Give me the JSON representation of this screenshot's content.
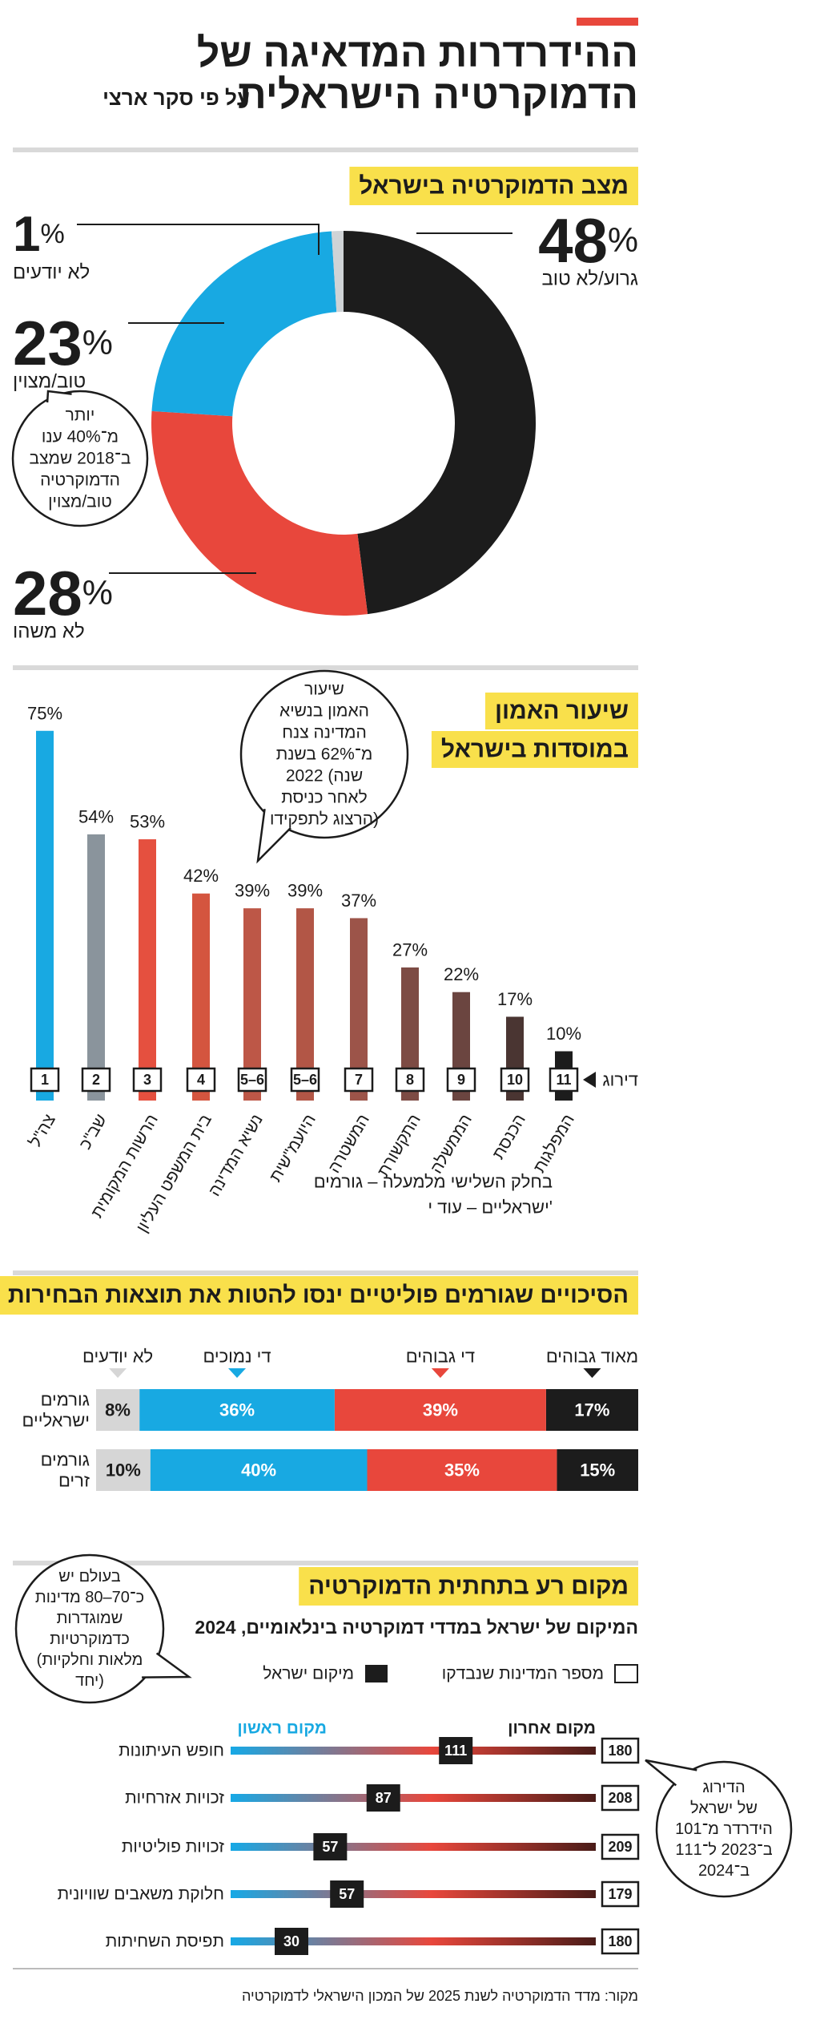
{
  "header": {
    "title_lines": [
      "ההידרדרות המדאיגה של",
      "הדמוקרטיה הישראלית"
    ],
    "subtitle": "על פי סקר ארצי"
  },
  "chart_data": [
    {
      "type": "donut",
      "title": "מצב הדמוקרטיה בישראל",
      "categories": [
        "גרוע/לא טוב",
        "לא משהו",
        "טוב/מצוין",
        "לא יודעים"
      ],
      "values": [
        48,
        28,
        23,
        1
      ],
      "value_labels": [
        "48%",
        "28%",
        "23%",
        "1%"
      ],
      "colors": [
        "#1c1c1c",
        "#e8473c",
        "#18a9e2",
        "#cfd3d6"
      ],
      "annotation": [
        "יותר",
        "מ־40% ענו",
        "ב־2018 שמצב",
        "הדמוקרטיה",
        "טוב/מצוין"
      ]
    },
    {
      "type": "bar",
      "title": [
        "שיעור האמון",
        "במוסדות בישראל"
      ],
      "categories": [
        "צה\"ל",
        "שב\"כ",
        "הרשות המקומית",
        "בית המשפט העליון",
        "נשיא המדינה",
        "היועמ\"שית",
        "המשטרה",
        "התקשורת",
        "הממשלה",
        "הכנסת",
        "המפלגות"
      ],
      "values": [
        75,
        54,
        53,
        42,
        39,
        39,
        37,
        27,
        22,
        17,
        10
      ],
      "value_labels": [
        "75%",
        "54%",
        "53%",
        "42%",
        "39%",
        "39%",
        "37%",
        "27%",
        "22%",
        "17%",
        "10%"
      ],
      "ranks": [
        1,
        2,
        3,
        4,
        "5–6",
        "5–6",
        7,
        8,
        9,
        10,
        11
      ],
      "rank_label": "דירוג",
      "colors": [
        "#18a9e2",
        "#8a949c",
        "#e5503f",
        "#d4553f",
        "#bd5747",
        "#b25646",
        "#9c5449",
        "#7d4b44",
        "#6b4540",
        "#4a3532",
        "#1c1c1c"
      ],
      "annotation": [
        "שיעור",
        "האמון בנשיא",
        "המדינה צנח",
        "מ־62% בשנת",
        "2022 (שנה",
        "לאחר כניסת",
        "הרצוג לתפקידו)"
      ],
      "note": [
        "בחלק השלישי מלמעלה – גורמים",
        "ישראליים – עוד י'"
      ]
    },
    {
      "type": "stacked-bar",
      "title": "הסיכויים שגורמים פוליטיים ינסו להטות את תוצאות הבחירות",
      "categories": [
        [
          "גורמים",
          "ישראליים"
        ],
        [
          "גורמים",
          "זרים"
        ]
      ],
      "series": [
        {
          "name": "מאוד גבוהים",
          "color": "#1c1c1c",
          "values": [
            17,
            15
          ],
          "value_labels": [
            "17%",
            "15%"
          ]
        },
        {
          "name": "די גבוהים",
          "color": "#e8473c",
          "values": [
            39,
            35
          ],
          "value_labels": [
            "39%",
            "35%"
          ]
        },
        {
          "name": "די נמוכים",
          "color": "#18a9e2",
          "values": [
            36,
            40
          ],
          "value_labels": [
            "36%",
            "40%"
          ]
        },
        {
          "name": "לא יודעים",
          "color": "#d6d6d6",
          "values": [
            8,
            10
          ],
          "value_labels": [
            "8%",
            "10%"
          ]
        }
      ]
    },
    {
      "type": "rank",
      "title": "מקום רע בתחתית הדמוקרטיה",
      "subtitle": "המיקום של ישראל במדדי דמוקרטיה בינלאומיים, 2024",
      "legend": {
        "total": "מספר המדינות שנבדקו",
        "rank": "מיקום ישראל"
      },
      "axis_labels": {
        "last": "מקום אחרון",
        "first": "מקום ראשון"
      },
      "categories": [
        "חופש העיתונות",
        "זכויות אזרחיות",
        "זכויות פוליטיות",
        "חלוקת משאבים שוויונית",
        "תפיסת השחיתות"
      ],
      "ranks": [
        111,
        87,
        57,
        57,
        30
      ],
      "totals": [
        180,
        208,
        209,
        179,
        180
      ],
      "annotation_left": [
        "בעולם יש",
        "כ־70–80 מדינות",
        "שמוגדרות",
        "כדמוקרטיות",
        "(מלאות וחלקיות",
        "יחד)"
      ],
      "annotation_right": [
        "הדירוג",
        "של ישראל",
        "הידרדר מ־101",
        "ב־2023 ל־111",
        "ב־2024"
      ]
    }
  ],
  "source": "מקור: מדד הדמוקרטיה לשנת 2025 של המכון הישראלי לדמוקרטיה"
}
